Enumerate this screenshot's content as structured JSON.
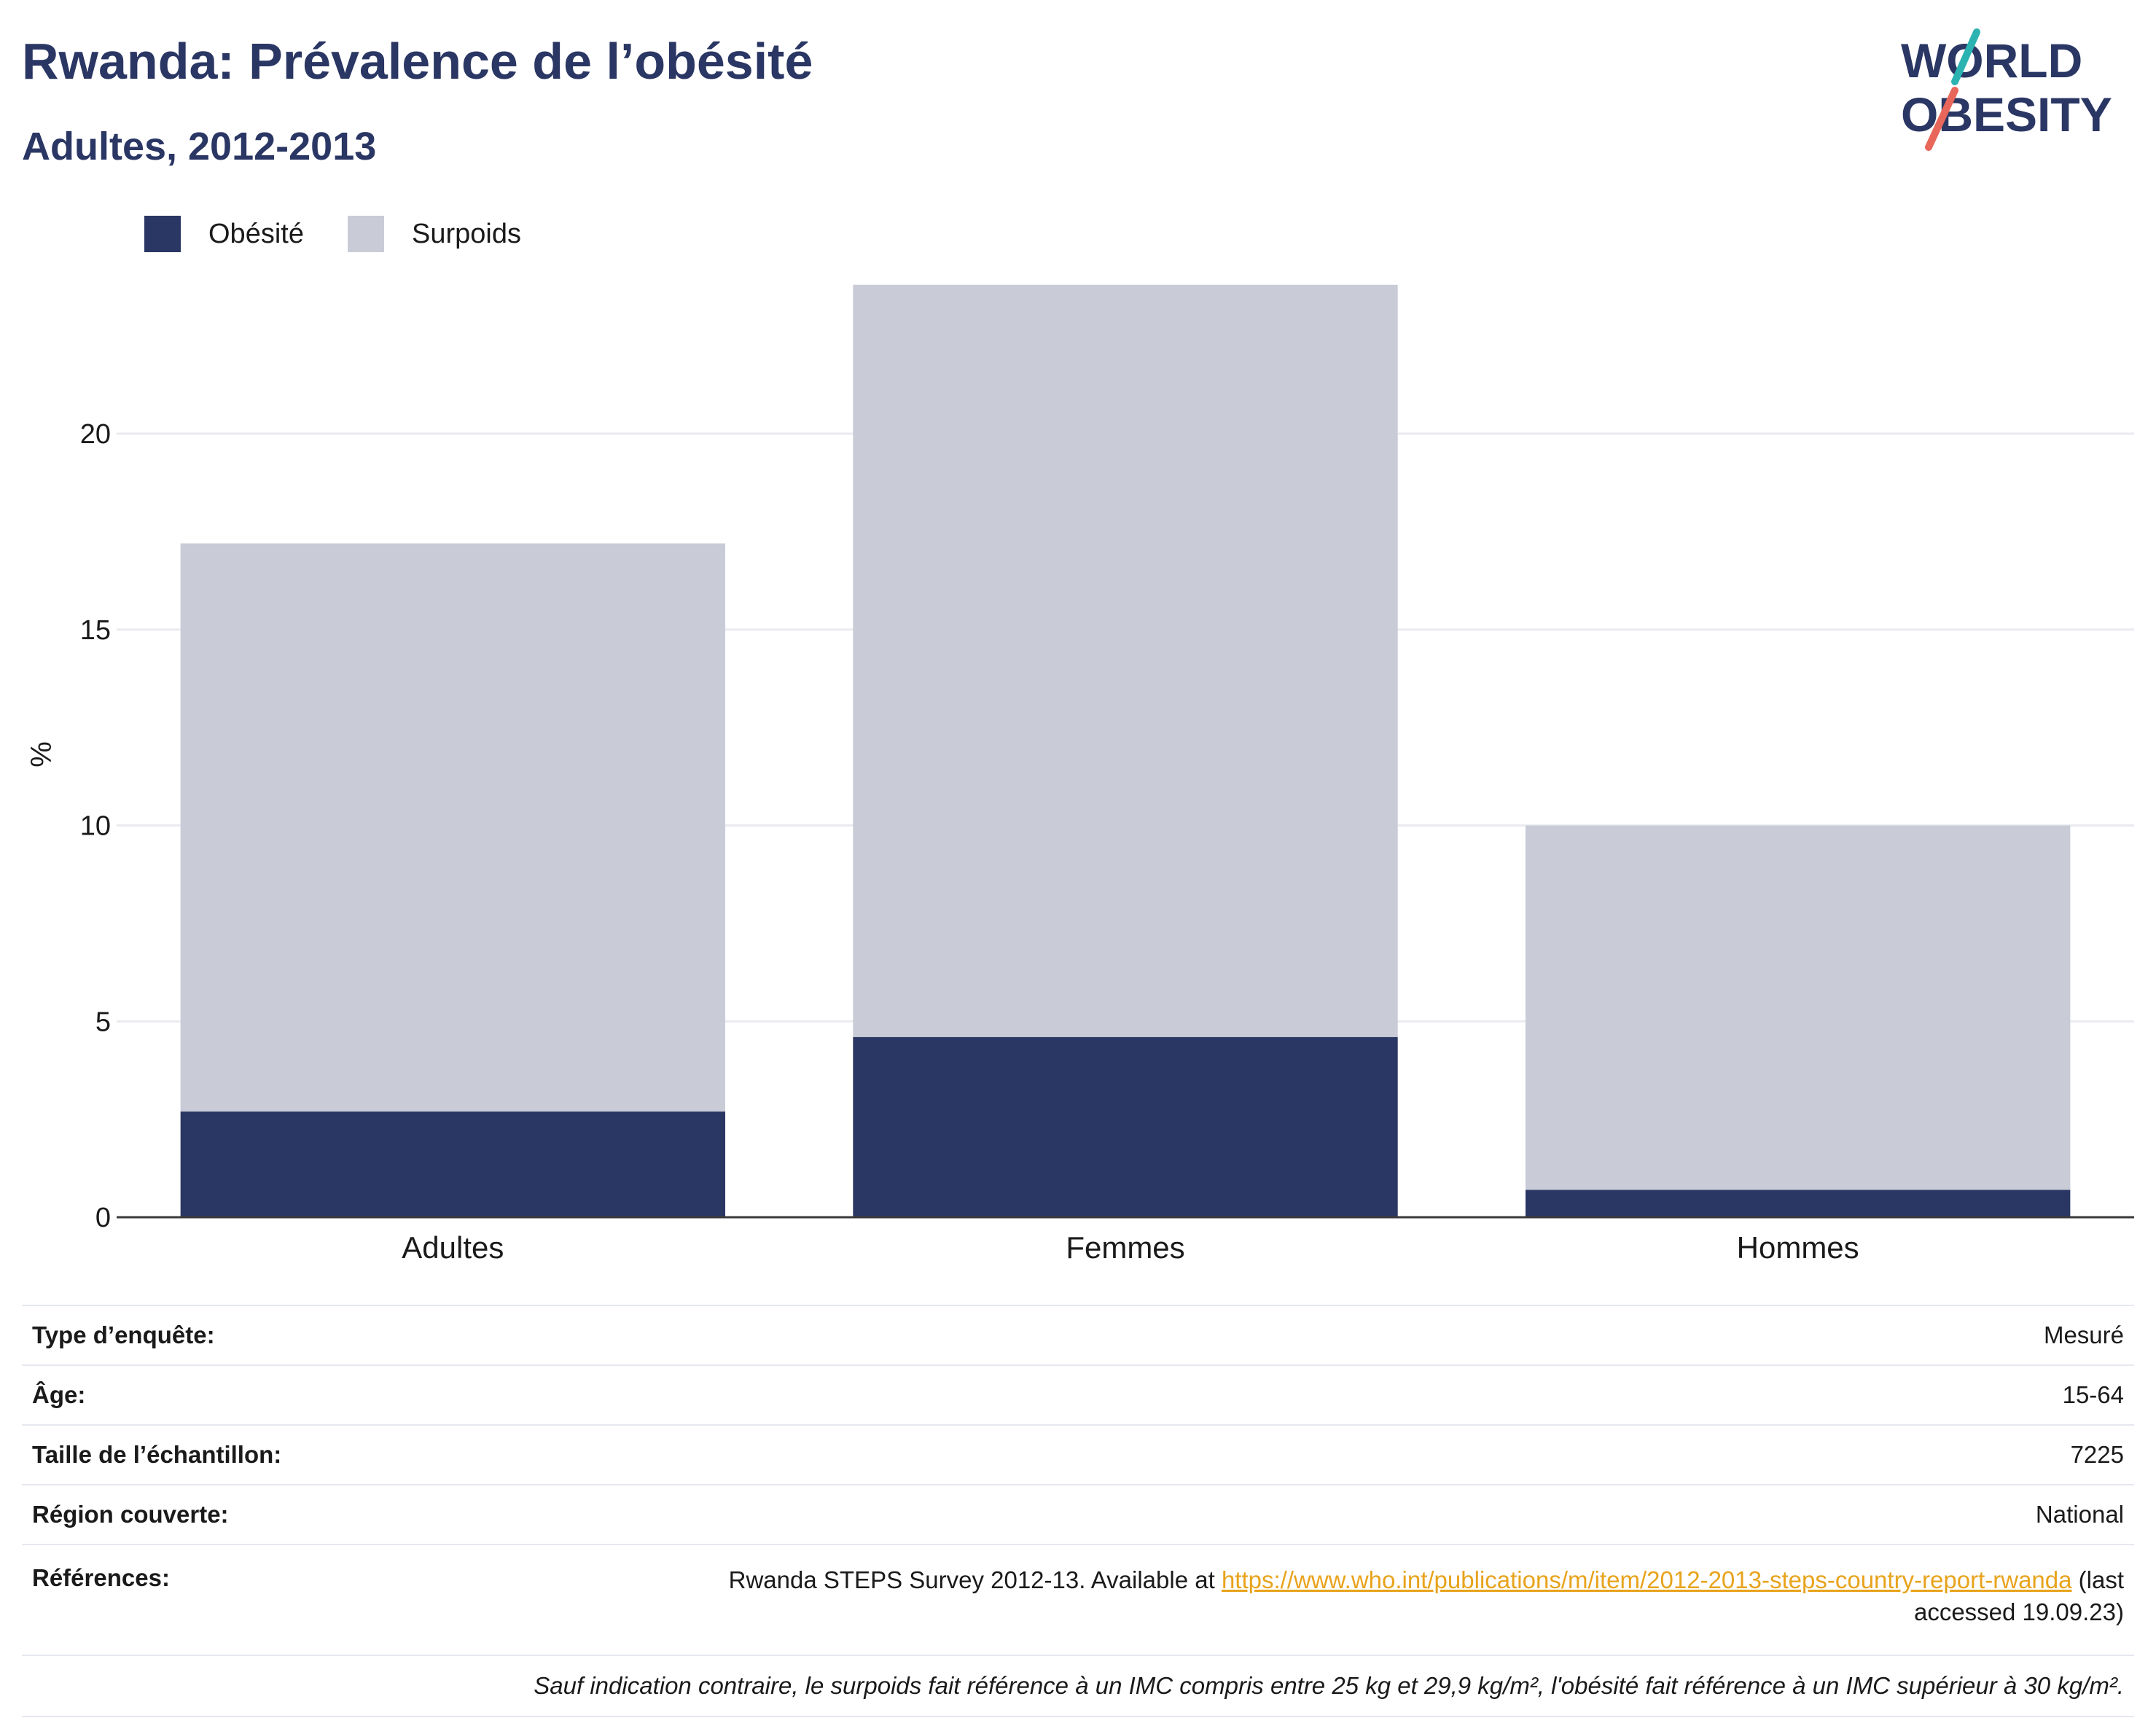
{
  "header": {
    "title": "Rwanda: Prévalence de l’obésité",
    "subtitle": "Adultes, 2012-2013"
  },
  "logo": {
    "line1": "WORLD",
    "line2": "OBESITY",
    "colors": {
      "text": "#2a3663",
      "slash_top": "#2bb3b1",
      "slash_bottom": "#e8675a"
    }
  },
  "legend": {
    "items": [
      {
        "label": "Obésité",
        "color": "#2a3663"
      },
      {
        "label": "Surpoids",
        "color": "#c9ccd7"
      }
    ]
  },
  "chart_data": {
    "type": "bar",
    "stacked": true,
    "categories": [
      "Adultes",
      "Femmes",
      "Hommes"
    ],
    "series": [
      {
        "name": "Obésité",
        "values": [
          2.7,
          4.6,
          0.7
        ],
        "color": "#2a3663"
      },
      {
        "name": "Surpoids",
        "values": [
          14.5,
          19.2,
          9.3
        ],
        "color": "#c9ccd7"
      }
    ],
    "ylabel": "%",
    "xlabel": "",
    "ylim": [
      0,
      24
    ],
    "yticks": [
      0,
      5,
      10,
      15,
      20
    ],
    "grid": true,
    "legend_position": "top-left"
  },
  "info": {
    "survey_type": {
      "label": "Type d’enquête:",
      "value": "Mesuré"
    },
    "age": {
      "label": "Âge:",
      "value": "15-64"
    },
    "sample_size": {
      "label": "Taille de l’échantillon:",
      "value": "7225"
    },
    "region": {
      "label": "Région couverte:",
      "value": "National"
    },
    "references": {
      "label": "Références:",
      "text_before": "Rwanda STEPS Survey 2012-13. Available at ",
      "link": "https://www.who.int/publications/m/item/2012-2013-steps-country-report-rwanda",
      "text_after": " (last",
      "text_line2": "accessed 19.09.23)"
    },
    "note": "Sauf indication contraire, le surpoids fait référence à un IMC compris entre 25 kg et 29,9 kg/m², l'obésité fait référence à un IMC supérieur à 30 kg/m²."
  }
}
